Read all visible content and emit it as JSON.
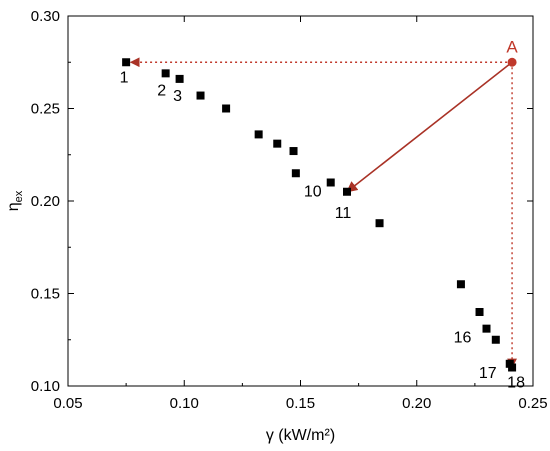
{
  "chart_data": {
    "type": "scatter",
    "title": "",
    "xlabel": "γ (kW/m²)",
    "ylabel": "ηex",
    "xlim": [
      0.05,
      0.25
    ],
    "ylim": [
      0.1,
      0.3
    ],
    "x_ticks": [
      "0.05",
      "0.10",
      "0.15",
      "0.20",
      "0.25"
    ],
    "y_ticks": [
      "0.10",
      "0.15",
      "0.20",
      "0.25",
      "0.30"
    ],
    "grid": false,
    "series": [
      {
        "marker": "square",
        "color": "#000000",
        "points": [
          {
            "x": 0.075,
            "y": 0.275,
            "label": "1"
          },
          {
            "x": 0.092,
            "y": 0.269,
            "label": "2"
          },
          {
            "x": 0.098,
            "y": 0.266,
            "label": "3"
          },
          {
            "x": 0.107,
            "y": 0.257,
            "label": ""
          },
          {
            "x": 0.118,
            "y": 0.25,
            "label": ""
          },
          {
            "x": 0.132,
            "y": 0.236,
            "label": ""
          },
          {
            "x": 0.14,
            "y": 0.231,
            "label": ""
          },
          {
            "x": 0.147,
            "y": 0.227,
            "label": ""
          },
          {
            "x": 0.148,
            "y": 0.215,
            "label": ""
          },
          {
            "x": 0.163,
            "y": 0.21,
            "label": "10"
          },
          {
            "x": 0.17,
            "y": 0.205,
            "label": "11"
          },
          {
            "x": 0.184,
            "y": 0.188,
            "label": ""
          },
          {
            "x": 0.219,
            "y": 0.155,
            "label": ""
          },
          {
            "x": 0.227,
            "y": 0.14,
            "label": ""
          },
          {
            "x": 0.23,
            "y": 0.131,
            "label": "16"
          },
          {
            "x": 0.234,
            "y": 0.125,
            "label": ""
          },
          {
            "x": 0.24,
            "y": 0.112,
            "label": "17"
          },
          {
            "x": 0.241,
            "y": 0.11,
            "label": "18"
          }
        ]
      }
    ],
    "reference_point": {
      "label": "A",
      "x": 0.241,
      "y": 0.275,
      "color": "#c0392b"
    },
    "annotations": [
      {
        "type": "dotted-arrow",
        "from": "A",
        "to_x": 0.077,
        "to_y": 0.275,
        "color": "#c0392b"
      },
      {
        "type": "dotted-arrow",
        "from": "A",
        "to_x": 0.241,
        "to_y": 0.11,
        "color": "#c0392b"
      },
      {
        "type": "solid-arrow",
        "from": "A",
        "to_x": 0.17,
        "to_y": 0.205,
        "color": "#a93226"
      }
    ]
  }
}
